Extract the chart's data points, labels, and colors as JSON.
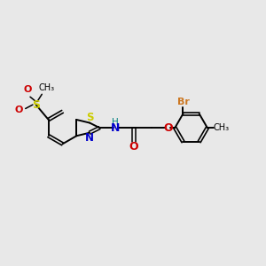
{
  "background_color": "#e8e8e8",
  "bond_color": "#000000",
  "S_color": "#cccc00",
  "N_color": "#0000cc",
  "O_color": "#cc0000",
  "Br_color": "#cc7722",
  "NH_color": "#008080",
  "figsize": [
    3.0,
    3.0
  ],
  "dpi": 100,
  "xlim": [
    0,
    10
  ],
  "ylim": [
    0,
    10
  ]
}
